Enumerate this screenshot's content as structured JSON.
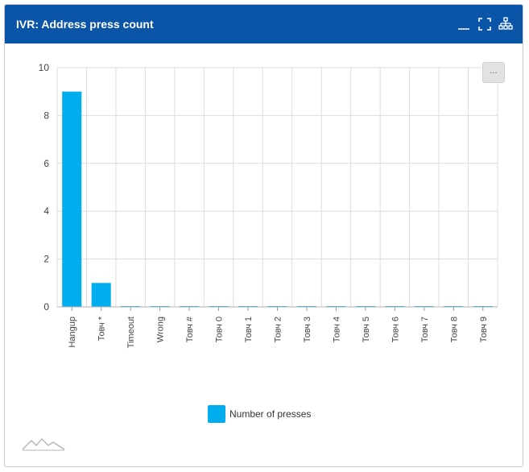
{
  "widget": {
    "title": "IVR: Address press count",
    "menu_label": "..."
  },
  "colors": {
    "header": "#0b55a8",
    "bar": "#00aeef",
    "grid": "#dcdcdc"
  },
  "icons": [
    "minimize-icon",
    "fullscreen-icon",
    "hierarchy-icon",
    "menu-icon",
    "logo-icon"
  ],
  "chart_data": {
    "type": "bar",
    "categories": [
      "Hangup",
      "Товч *",
      "Timeout",
      "Wrong",
      "Товч #",
      "Товч 0",
      "Товч 1",
      "Товч 2",
      "Товч 3",
      "Товч 4",
      "Товч 5",
      "Товч 6",
      "Товч 7",
      "Товч 8",
      "Товч 9"
    ],
    "series": [
      {
        "name": "Number of presses",
        "values": [
          9,
          1,
          0,
          0,
          0,
          0,
          0,
          0,
          0,
          0,
          0,
          0,
          0,
          0,
          0
        ]
      }
    ],
    "yticks": [
      0,
      2,
      4,
      6,
      8,
      10
    ],
    "ylim": [
      0,
      10
    ],
    "grid": true,
    "legend": "bottom-center"
  }
}
